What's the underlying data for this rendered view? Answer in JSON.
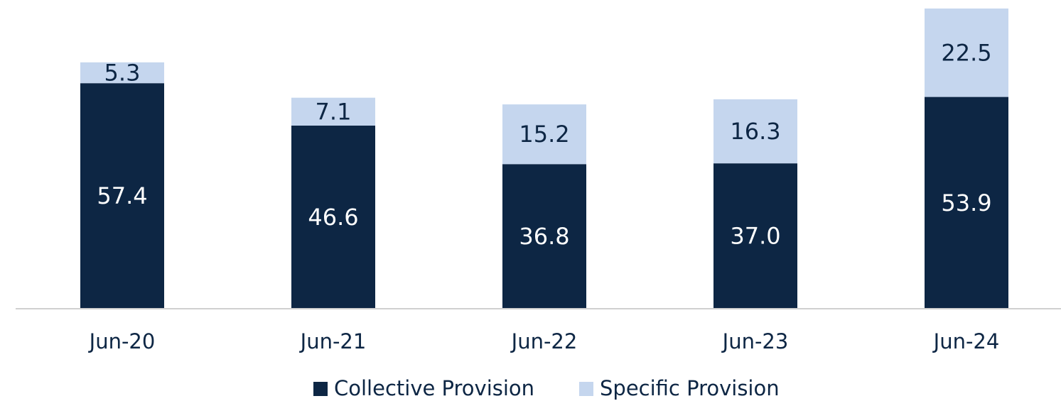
{
  "chart_data": {
    "type": "stacked_bar",
    "categories": [
      "Jun-20",
      "Jun-21",
      "Jun-22",
      "Jun-23",
      "Jun-24"
    ],
    "series": [
      {
        "name": "Collective Provision",
        "color": "#0d2644",
        "values": [
          57.4,
          46.6,
          36.8,
          37.0,
          53.9
        ],
        "value_labels": [
          "57.4",
          "46.6",
          "36.8",
          "37.0",
          "53.9"
        ]
      },
      {
        "name": "Specific Provision",
        "color": "#c5d6ee",
        "values": [
          5.3,
          7.1,
          15.2,
          16.3,
          22.5
        ],
        "value_labels": [
          "5.3",
          "7.1",
          "15.2",
          "16.3",
          "22.5"
        ]
      }
    ],
    "legend": "bottom"
  }
}
